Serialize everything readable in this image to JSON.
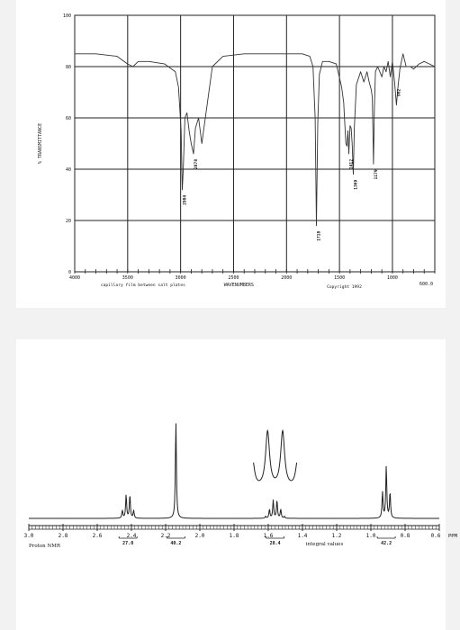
{
  "chart_data": [
    {
      "type": "line",
      "xlabel": "WAVENUMBERS",
      "ylabel": "% TRANSMITTANCE",
      "x_ticks": [
        "4000",
        "3500",
        "3000",
        "2500",
        "2000",
        "1500",
        "1000",
        "600.0"
      ],
      "y_ticks": [
        "100",
        "80",
        "60",
        "40",
        "20",
        "0"
      ],
      "xlim": [
        4000,
        600
      ],
      "ylim": [
        0,
        100
      ],
      "grid": true,
      "sample_note": "capillary film between salt plates",
      "copyright": "Copyright 1992",
      "series": [
        {
          "x": [
            4000,
            3800,
            3600,
            3500,
            3450,
            3400,
            3300,
            3150,
            3050,
            3020,
            2995,
            2984,
            2975,
            2960,
            2940,
            2920,
            2900,
            2878,
            2860,
            2830,
            2800,
            2700,
            2600,
            2400,
            2200,
            2000,
            1850,
            1780,
            1750,
            1730,
            1718,
            1705,
            1690,
            1660,
            1600,
            1530,
            1480,
            1460,
            1440,
            1430,
            1420,
            1412,
            1400,
            1390,
            1380,
            1369,
            1360,
            1340,
            1300,
            1270,
            1240,
            1220,
            1200,
            1190,
            1179,
            1170,
            1160,
            1140,
            1100,
            1080,
            1060,
            1040,
            1020,
            1000,
            980,
            962,
            950,
            930,
            900,
            870,
            830,
            800,
            750,
            700,
            650,
            600
          ],
          "y": [
            85,
            85,
            84,
            81,
            80,
            82,
            82,
            81,
            78,
            72,
            55,
            32,
            40,
            60,
            62,
            55,
            50,
            46,
            56,
            60,
            50,
            80,
            84,
            85,
            85,
            85,
            85,
            84,
            80,
            60,
            18,
            58,
            77,
            82,
            82,
            81,
            72,
            66,
            50,
            49,
            55,
            46,
            57,
            56,
            50,
            38,
            56,
            73,
            78,
            74,
            78,
            74,
            71,
            68,
            42,
            64,
            78,
            80,
            76,
            80,
            78,
            82,
            76,
            82,
            74,
            65,
            71,
            79,
            85,
            80,
            80,
            79,
            81,
            82,
            81,
            80
          ]
        }
      ],
      "annotations": [
        {
          "text": "2984",
          "x": 2984,
          "y": 32
        },
        {
          "text": "2878",
          "x": 2878,
          "y": 46
        },
        {
          "text": "1718",
          "x": 1718,
          "y": 18
        },
        {
          "text": "1412",
          "x": 1412,
          "y": 46
        },
        {
          "text": "1369",
          "x": 1369,
          "y": 38
        },
        {
          "text": "1179",
          "x": 1179,
          "y": 42
        },
        {
          "text": "962",
          "x": 962,
          "y": 65
        }
      ]
    },
    {
      "type": "line",
      "title": "Proton NMR",
      "xlabel": "PPM",
      "x_ticks": [
        "3.0",
        "2.8",
        "2.6",
        "2.4",
        "2.2",
        "2.0",
        "1.8",
        "1.6",
        "1.4",
        "1.2",
        "1.0",
        "0.8",
        "0.6"
      ],
      "xlim": [
        3.0,
        0.6
      ],
      "grid": false,
      "peaks": [
        {
          "shift": 2.42,
          "multiplicity": "quartet",
          "integral": "27.0"
        },
        {
          "shift": 2.14,
          "multiplicity": "singlet",
          "integral": "40.2"
        },
        {
          "shift": 1.56,
          "multiplicity": "sextet",
          "integral": "28.4"
        },
        {
          "shift": 0.91,
          "multiplicity": "triplet",
          "integral": "42.2"
        }
      ],
      "integral_label": "integral values"
    }
  ]
}
